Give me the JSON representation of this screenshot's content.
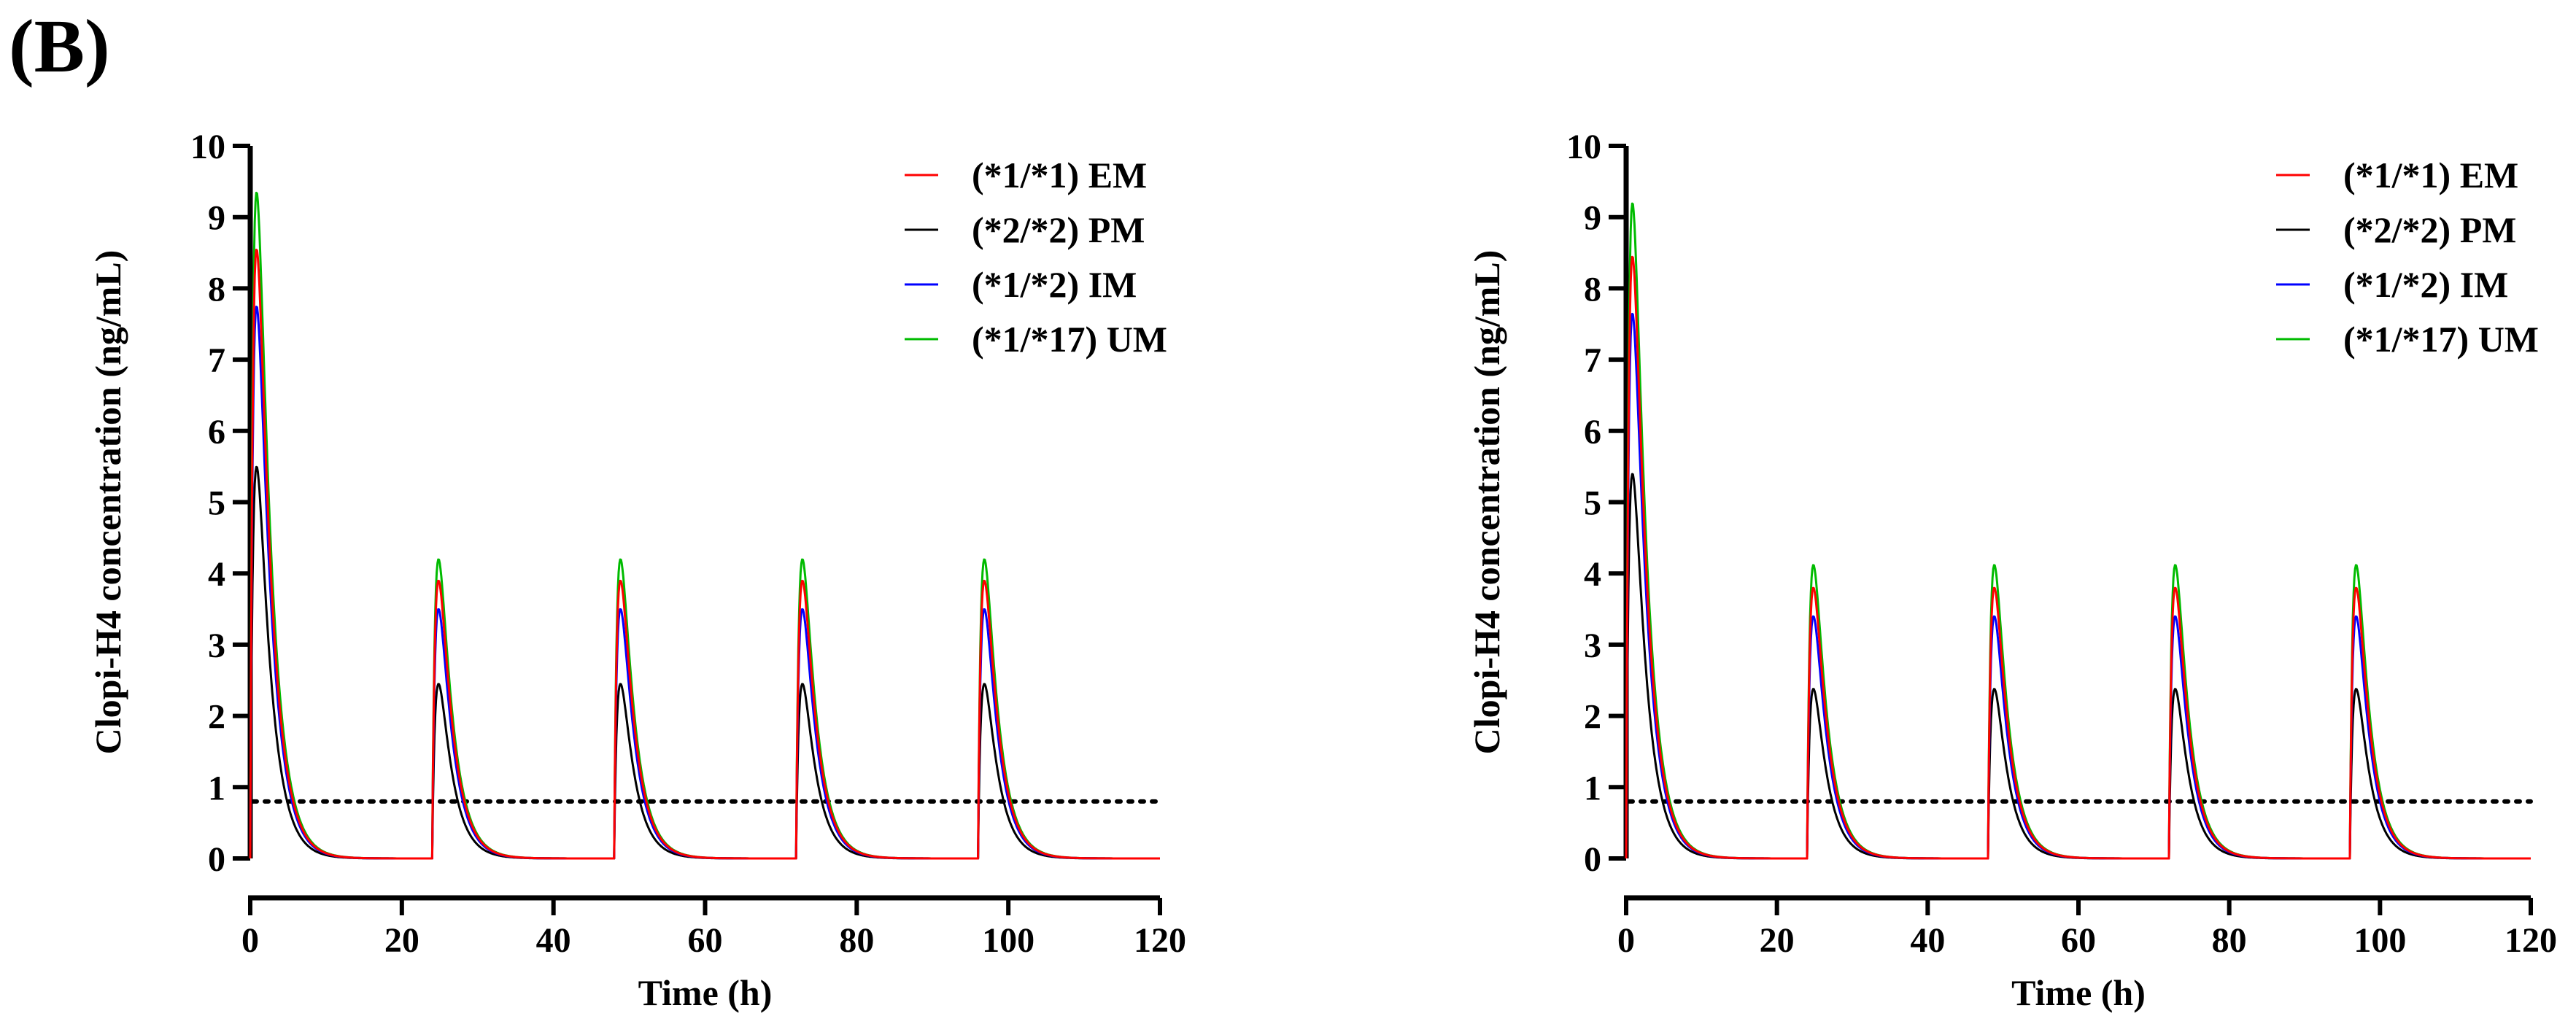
{
  "panel_label": "(B)",
  "colors": {
    "em": "#ff0000",
    "pm": "#000000",
    "im": "#0000ff",
    "um": "#00bb00",
    "axis": "#000000"
  },
  "chart_data": [
    {
      "type": "line",
      "xlabel": "Time (h)",
      "ylabel": "Clopi-H4 concentration (ng/mL)",
      "xlim": [
        0,
        120
      ],
      "ylim": [
        0,
        10
      ],
      "xticks": [
        0,
        20,
        40,
        60,
        80,
        100,
        120
      ],
      "yticks": [
        0,
        1,
        2,
        3,
        4,
        5,
        6,
        7,
        8,
        9,
        10
      ],
      "reference_line": {
        "y": 0.8,
        "style": "dotted"
      },
      "legend_position": "top-right",
      "dose_times": [
        0,
        24,
        48,
        72,
        96
      ],
      "series": [
        {
          "name": "(*1/*1) EM",
          "color": "#ff0000",
          "first_peak": 8.55,
          "repeat_peak": 3.9,
          "tmax_h": 1.0
        },
        {
          "name": "(*2/*2) PM",
          "color": "#000000",
          "first_peak": 5.5,
          "repeat_peak": 2.45,
          "tmax_h": 1.0
        },
        {
          "name": "(*1/*2) IM",
          "color": "#0000ff",
          "first_peak": 7.75,
          "repeat_peak": 3.5,
          "tmax_h": 1.0
        },
        {
          "name": "(*1/*17) UM",
          "color": "#00bb00",
          "first_peak": 9.35,
          "repeat_peak": 4.2,
          "tmax_h": 1.0
        }
      ]
    },
    {
      "type": "line",
      "xlabel": "Time (h)",
      "ylabel": "Clopi-H4 concentration (ng/mL)",
      "xlim": [
        0,
        120
      ],
      "ylim": [
        0,
        10
      ],
      "xticks": [
        0,
        20,
        40,
        60,
        80,
        100,
        120
      ],
      "yticks": [
        0,
        1,
        2,
        3,
        4,
        5,
        6,
        7,
        8,
        9,
        10
      ],
      "reference_line": {
        "y": 0.8,
        "style": "dotted"
      },
      "legend_position": "top-right",
      "dose_times": [
        0,
        24,
        48,
        72,
        96
      ],
      "series": [
        {
          "name": "(*1/*1) EM",
          "color": "#ff0000",
          "first_peak": 8.45,
          "repeat_peak": 3.8,
          "tmax_h": 1.0
        },
        {
          "name": "(*2/*2) PM",
          "color": "#000000",
          "first_peak": 5.4,
          "repeat_peak": 2.38,
          "tmax_h": 1.0
        },
        {
          "name": "(*1/*2) IM",
          "color": "#0000ff",
          "first_peak": 7.65,
          "repeat_peak": 3.4,
          "tmax_h": 1.0
        },
        {
          "name": "(*1/*17) UM",
          "color": "#00bb00",
          "first_peak": 9.2,
          "repeat_peak": 4.12,
          "tmax_h": 1.0
        }
      ]
    }
  ]
}
